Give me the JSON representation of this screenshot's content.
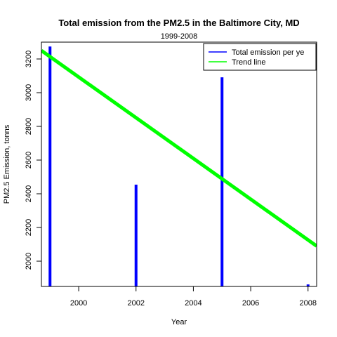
{
  "chart_data": {
    "type": "bar",
    "title": "Total emission from the PM2.5 in the Baltimore City, MD",
    "subtitle": "1999-2008",
    "xlabel": "Year",
    "ylabel": "PM2.5 Emission, tonns",
    "xlim": [
      1998.7,
      2008.3
    ],
    "ylim": [
      1850,
      3300
    ],
    "x_ticks": [
      2000,
      2002,
      2004,
      2006,
      2008
    ],
    "y_ticks": [
      2000,
      2200,
      2400,
      2600,
      2800,
      3000,
      3200
    ],
    "series": [
      {
        "name": "Total emission per ye",
        "color": "#0000ff",
        "type": "bar",
        "x": [
          1999,
          2002,
          2005,
          2008
        ],
        "values": [
          3274,
          2454,
          3091,
          1862
        ]
      },
      {
        "name": "Trend line",
        "color": "#00ff00",
        "type": "line",
        "x": [
          1998.7,
          2008.3
        ],
        "values": [
          3250,
          2090
        ]
      }
    ],
    "legend_position": "top-right",
    "grid": false
  }
}
